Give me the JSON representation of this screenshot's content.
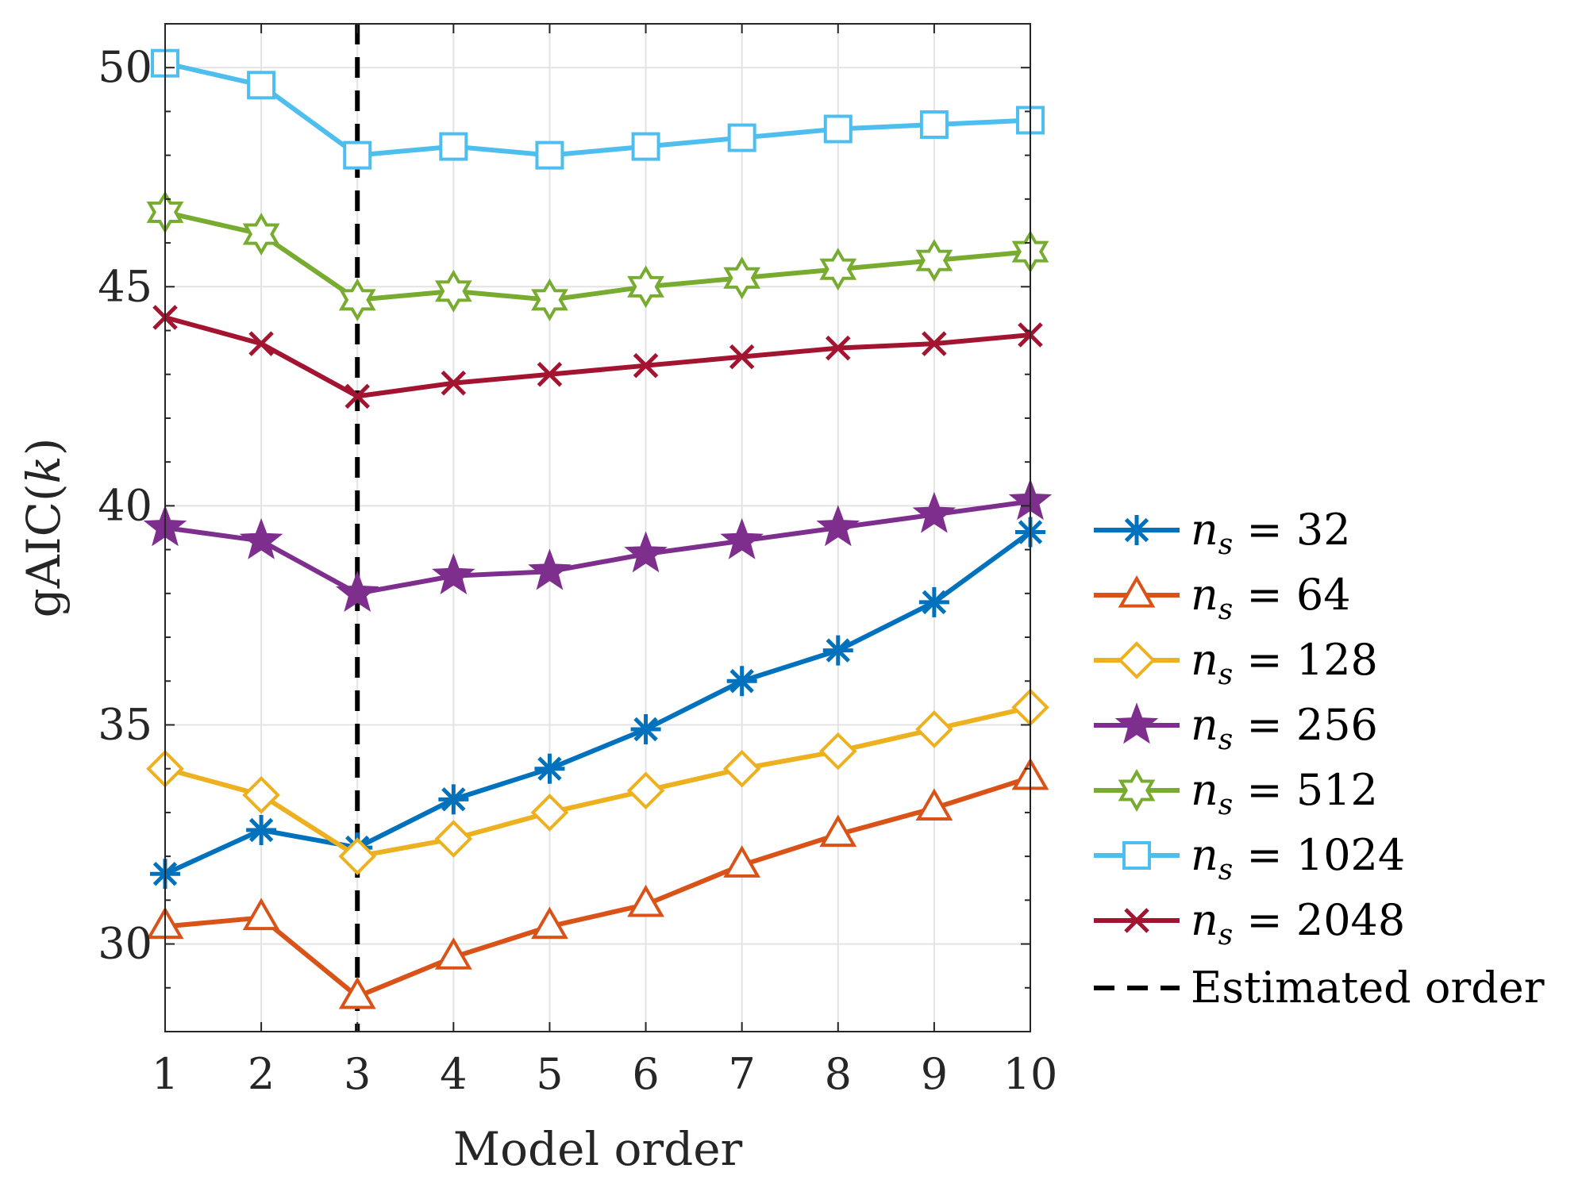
{
  "chart_data": {
    "type": "line",
    "xlabel": "Model order",
    "ylabel": "gAIC(k)",
    "x": [
      1,
      2,
      3,
      4,
      5,
      6,
      7,
      8,
      9,
      10
    ],
    "xlim": [
      1,
      10
    ],
    "ylim": [
      28,
      51
    ],
    "xticks": [
      1,
      2,
      3,
      4,
      5,
      6,
      7,
      8,
      9,
      10
    ],
    "yticks": [
      30,
      35,
      40,
      45,
      50
    ],
    "grid": true,
    "legend_position": "outside-right",
    "series": [
      {
        "name": "n_s = 32",
        "label_var": "n",
        "label_sub": "s",
        "label_value": "32",
        "color": "#0072BD",
        "marker": "asterisk",
        "values": [
          31.6,
          32.6,
          32.2,
          33.3,
          34.0,
          34.9,
          36.0,
          36.7,
          37.8,
          39.4
        ]
      },
      {
        "name": "n_s = 64",
        "label_var": "n",
        "label_sub": "s",
        "label_value": "64",
        "color": "#D95319",
        "marker": "triangle",
        "values": [
          30.4,
          30.6,
          28.8,
          29.7,
          30.4,
          30.9,
          31.8,
          32.5,
          33.1,
          33.8
        ]
      },
      {
        "name": "n_s = 128",
        "label_var": "n",
        "label_sub": "s",
        "label_value": "128",
        "color": "#EDB120",
        "marker": "diamond",
        "values": [
          34.0,
          33.4,
          32.0,
          32.4,
          33.0,
          33.5,
          34.0,
          34.4,
          34.9,
          35.4
        ]
      },
      {
        "name": "n_s = 256",
        "label_var": "n",
        "label_sub": "s",
        "label_value": "256",
        "color": "#7E2F8E",
        "marker": "pentagram",
        "values": [
          39.5,
          39.2,
          38.0,
          38.4,
          38.5,
          38.9,
          39.2,
          39.5,
          39.8,
          40.1
        ]
      },
      {
        "name": "n_s = 512",
        "label_var": "n",
        "label_sub": "s",
        "label_value": "512",
        "color": "#77AC30",
        "marker": "hexagram",
        "values": [
          46.7,
          46.2,
          44.7,
          44.9,
          44.7,
          45.0,
          45.2,
          45.4,
          45.6,
          45.8
        ]
      },
      {
        "name": "n_s = 1024",
        "label_var": "n",
        "label_sub": "s",
        "label_value": "1024",
        "color": "#4DBEEE",
        "marker": "square",
        "values": [
          50.1,
          49.6,
          48.0,
          48.2,
          48.0,
          48.2,
          48.4,
          48.6,
          48.7,
          48.8
        ]
      },
      {
        "name": "n_s = 2048",
        "label_var": "n",
        "label_sub": "s",
        "label_value": "2048",
        "color": "#A2142F",
        "marker": "x",
        "values": [
          44.3,
          43.7,
          42.5,
          42.8,
          43.0,
          43.2,
          43.4,
          43.6,
          43.7,
          43.9
        ]
      }
    ],
    "reference_line": {
      "name": "Estimated order",
      "x": 3,
      "color": "#000000",
      "style": "dashed"
    }
  }
}
